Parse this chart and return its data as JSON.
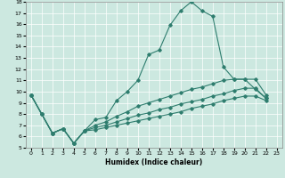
{
  "xlabel": "Humidex (Indice chaleur)",
  "background_color": "#cce8e0",
  "grid_color": "#ffffff",
  "line_color": "#2e7d6e",
  "xlim": [
    -0.5,
    23.5
  ],
  "ylim": [
    5,
    18
  ],
  "xticks": [
    0,
    1,
    2,
    3,
    4,
    5,
    6,
    7,
    8,
    9,
    10,
    11,
    12,
    13,
    14,
    15,
    16,
    17,
    18,
    19,
    20,
    21,
    22,
    23
  ],
  "yticks": [
    5,
    6,
    7,
    8,
    9,
    10,
    11,
    12,
    13,
    14,
    15,
    16,
    17,
    18
  ],
  "line1_y": [
    9.7,
    8.0,
    6.3,
    6.7,
    5.4,
    6.5,
    7.5,
    7.7,
    9.2,
    10.0,
    11.0,
    13.3,
    13.7,
    15.9,
    17.2,
    18.0,
    17.2,
    16.7,
    12.2,
    11.1,
    11.1,
    10.2,
    9.4
  ],
  "line2_y": [
    9.7,
    8.0,
    6.3,
    6.7,
    5.4,
    6.5,
    7.0,
    7.3,
    7.8,
    8.2,
    8.7,
    9.0,
    9.3,
    9.6,
    9.9,
    10.2,
    10.4,
    10.7,
    11.0,
    11.1,
    11.1,
    11.1,
    9.7
  ],
  "line3_y": [
    9.7,
    8.0,
    6.3,
    6.7,
    5.4,
    6.5,
    6.8,
    7.0,
    7.3,
    7.6,
    7.9,
    8.1,
    8.4,
    8.6,
    8.9,
    9.1,
    9.3,
    9.6,
    9.8,
    10.1,
    10.3,
    10.3,
    9.4
  ],
  "line4_y": [
    9.7,
    8.0,
    6.3,
    6.7,
    5.4,
    6.5,
    6.6,
    6.8,
    7.0,
    7.2,
    7.4,
    7.6,
    7.8,
    8.0,
    8.2,
    8.5,
    8.7,
    8.9,
    9.2,
    9.4,
    9.6,
    9.6,
    9.2
  ]
}
